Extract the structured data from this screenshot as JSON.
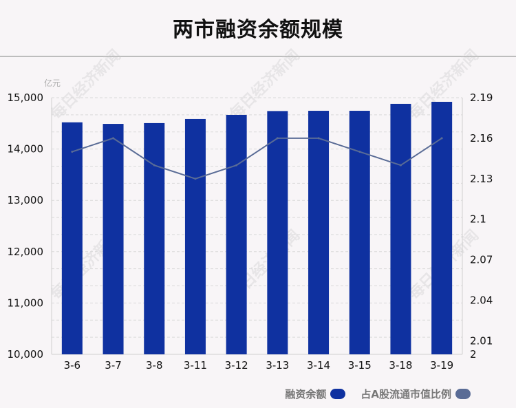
{
  "title": "两市融资余额规模",
  "unit_label": "亿元",
  "watermark_text": "每日经济新闻",
  "colors": {
    "bar": "#0f31a0",
    "line": "#5a6c96",
    "grid": "#d9d9d9",
    "axis_text": "#111111"
  },
  "legend": {
    "bar_label": "融资余额",
    "line_label": "占A股流通市值比例"
  },
  "chart_data": {
    "type": "bar",
    "categories": [
      "3-6",
      "3-7",
      "3-8",
      "3-11",
      "3-12",
      "3-13",
      "3-14",
      "3-15",
      "3-18",
      "3-19"
    ],
    "series": [
      {
        "name": "融资余额",
        "type": "bar",
        "axis": "left",
        "values": [
          14520,
          14490,
          14505,
          14585,
          14665,
          14740,
          14745,
          14745,
          14880,
          14920
        ]
      },
      {
        "name": "占A股流通市值比例",
        "type": "line",
        "axis": "right",
        "values": [
          2.15,
          2.16,
          2.14,
          2.13,
          2.14,
          2.16,
          2.16,
          2.15,
          2.14,
          2.16
        ]
      }
    ],
    "ylim_left": [
      10000,
      15000
    ],
    "yticks_left": [
      "10,000",
      "11,000",
      "12,000",
      "13,000",
      "14,000",
      "15,000"
    ],
    "ylim_right": [
      2,
      2.19
    ],
    "yticks_right": [
      {
        "label": "2",
        "value": 2
      },
      {
        "label": "2.01",
        "value": 2.01
      },
      {
        "label": "2.04",
        "value": 2.04
      },
      {
        "label": "2.07",
        "value": 2.07
      },
      {
        "label": "2.1",
        "value": 2.1
      },
      {
        "label": "2.13",
        "value": 2.13
      },
      {
        "label": "2.16",
        "value": 2.16
      },
      {
        "label": "2.19",
        "value": 2.19
      }
    ],
    "grid": true,
    "legend_position": "bottom-right"
  }
}
